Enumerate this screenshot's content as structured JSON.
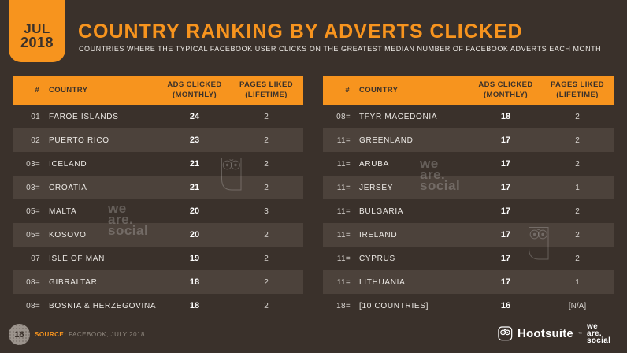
{
  "header": {
    "date_line1": "JUL",
    "date_line2": "2018",
    "title": "COUNTRY RANKING BY ADVERTS CLICKED",
    "subtitle": "COUNTRIES WHERE THE TYPICAL FACEBOOK USER CLICKS ON THE GREATEST MEDIAN NUMBER OF FACEBOOK ADVERTS EACH MONTH"
  },
  "colors": {
    "accent_orange": "#F7941E",
    "background": "#3A312B",
    "row_stripe": "#4C423B"
  },
  "tables": {
    "headers": {
      "rank": "#",
      "country": "COUNTRY",
      "ads_line1": "ADS CLICKED",
      "ads_line2": "(MONTHLY)",
      "pages_line1": "PAGES LIKED",
      "pages_line2": "(LIFETIME)"
    },
    "left": {
      "rows": [
        {
          "rank": "01",
          "country": "FAROE ISLANDS",
          "ads": "24",
          "pages": "2"
        },
        {
          "rank": "02",
          "country": "PUERTO RICO",
          "ads": "23",
          "pages": "2"
        },
        {
          "rank": "03=",
          "country": "ICELAND",
          "ads": "21",
          "pages": "2"
        },
        {
          "rank": "03=",
          "country": "CROATIA",
          "ads": "21",
          "pages": "2"
        },
        {
          "rank": "05=",
          "country": "MALTA",
          "ads": "20",
          "pages": "3"
        },
        {
          "rank": "05=",
          "country": "KOSOVO",
          "ads": "20",
          "pages": "2"
        },
        {
          "rank": "07",
          "country": "ISLE OF MAN",
          "ads": "19",
          "pages": "2"
        },
        {
          "rank": "08=",
          "country": "GIBRALTAR",
          "ads": "18",
          "pages": "2"
        },
        {
          "rank": "08=",
          "country": "BOSNIA & HERZEGOVINA",
          "ads": "18",
          "pages": "2"
        }
      ]
    },
    "right": {
      "rows": [
        {
          "rank": "08=",
          "country": "TFYR MACEDONIA",
          "ads": "18",
          "pages": "2"
        },
        {
          "rank": "11=",
          "country": "GREENLAND",
          "ads": "17",
          "pages": "2"
        },
        {
          "rank": "11=",
          "country": "ARUBA",
          "ads": "17",
          "pages": "2"
        },
        {
          "rank": "11=",
          "country": "JERSEY",
          "ads": "17",
          "pages": "1"
        },
        {
          "rank": "11=",
          "country": "BULGARIA",
          "ads": "17",
          "pages": "2"
        },
        {
          "rank": "11=",
          "country": "IRELAND",
          "ads": "17",
          "pages": "2"
        },
        {
          "rank": "11=",
          "country": "CYPRUS",
          "ads": "17",
          "pages": "2"
        },
        {
          "rank": "11=",
          "country": "LITHUANIA",
          "ads": "17",
          "pages": "1"
        },
        {
          "rank": "18=",
          "country": "[10 COUNTRIES]",
          "ads": "16",
          "pages": "[N/A]"
        }
      ]
    }
  },
  "watermark": {
    "line1": "we",
    "line2": "are.",
    "line3": "social"
  },
  "footer": {
    "page_number": "16",
    "source_label": "SOURCE:",
    "source_text": " FACEBOOK, JULY 2018.",
    "hootsuite_wordmark": "Hootsuite",
    "hootsuite_tm": "™",
    "wearesocial_line1": "we",
    "wearesocial_line2": "are.",
    "wearesocial_line3": "social"
  }
}
